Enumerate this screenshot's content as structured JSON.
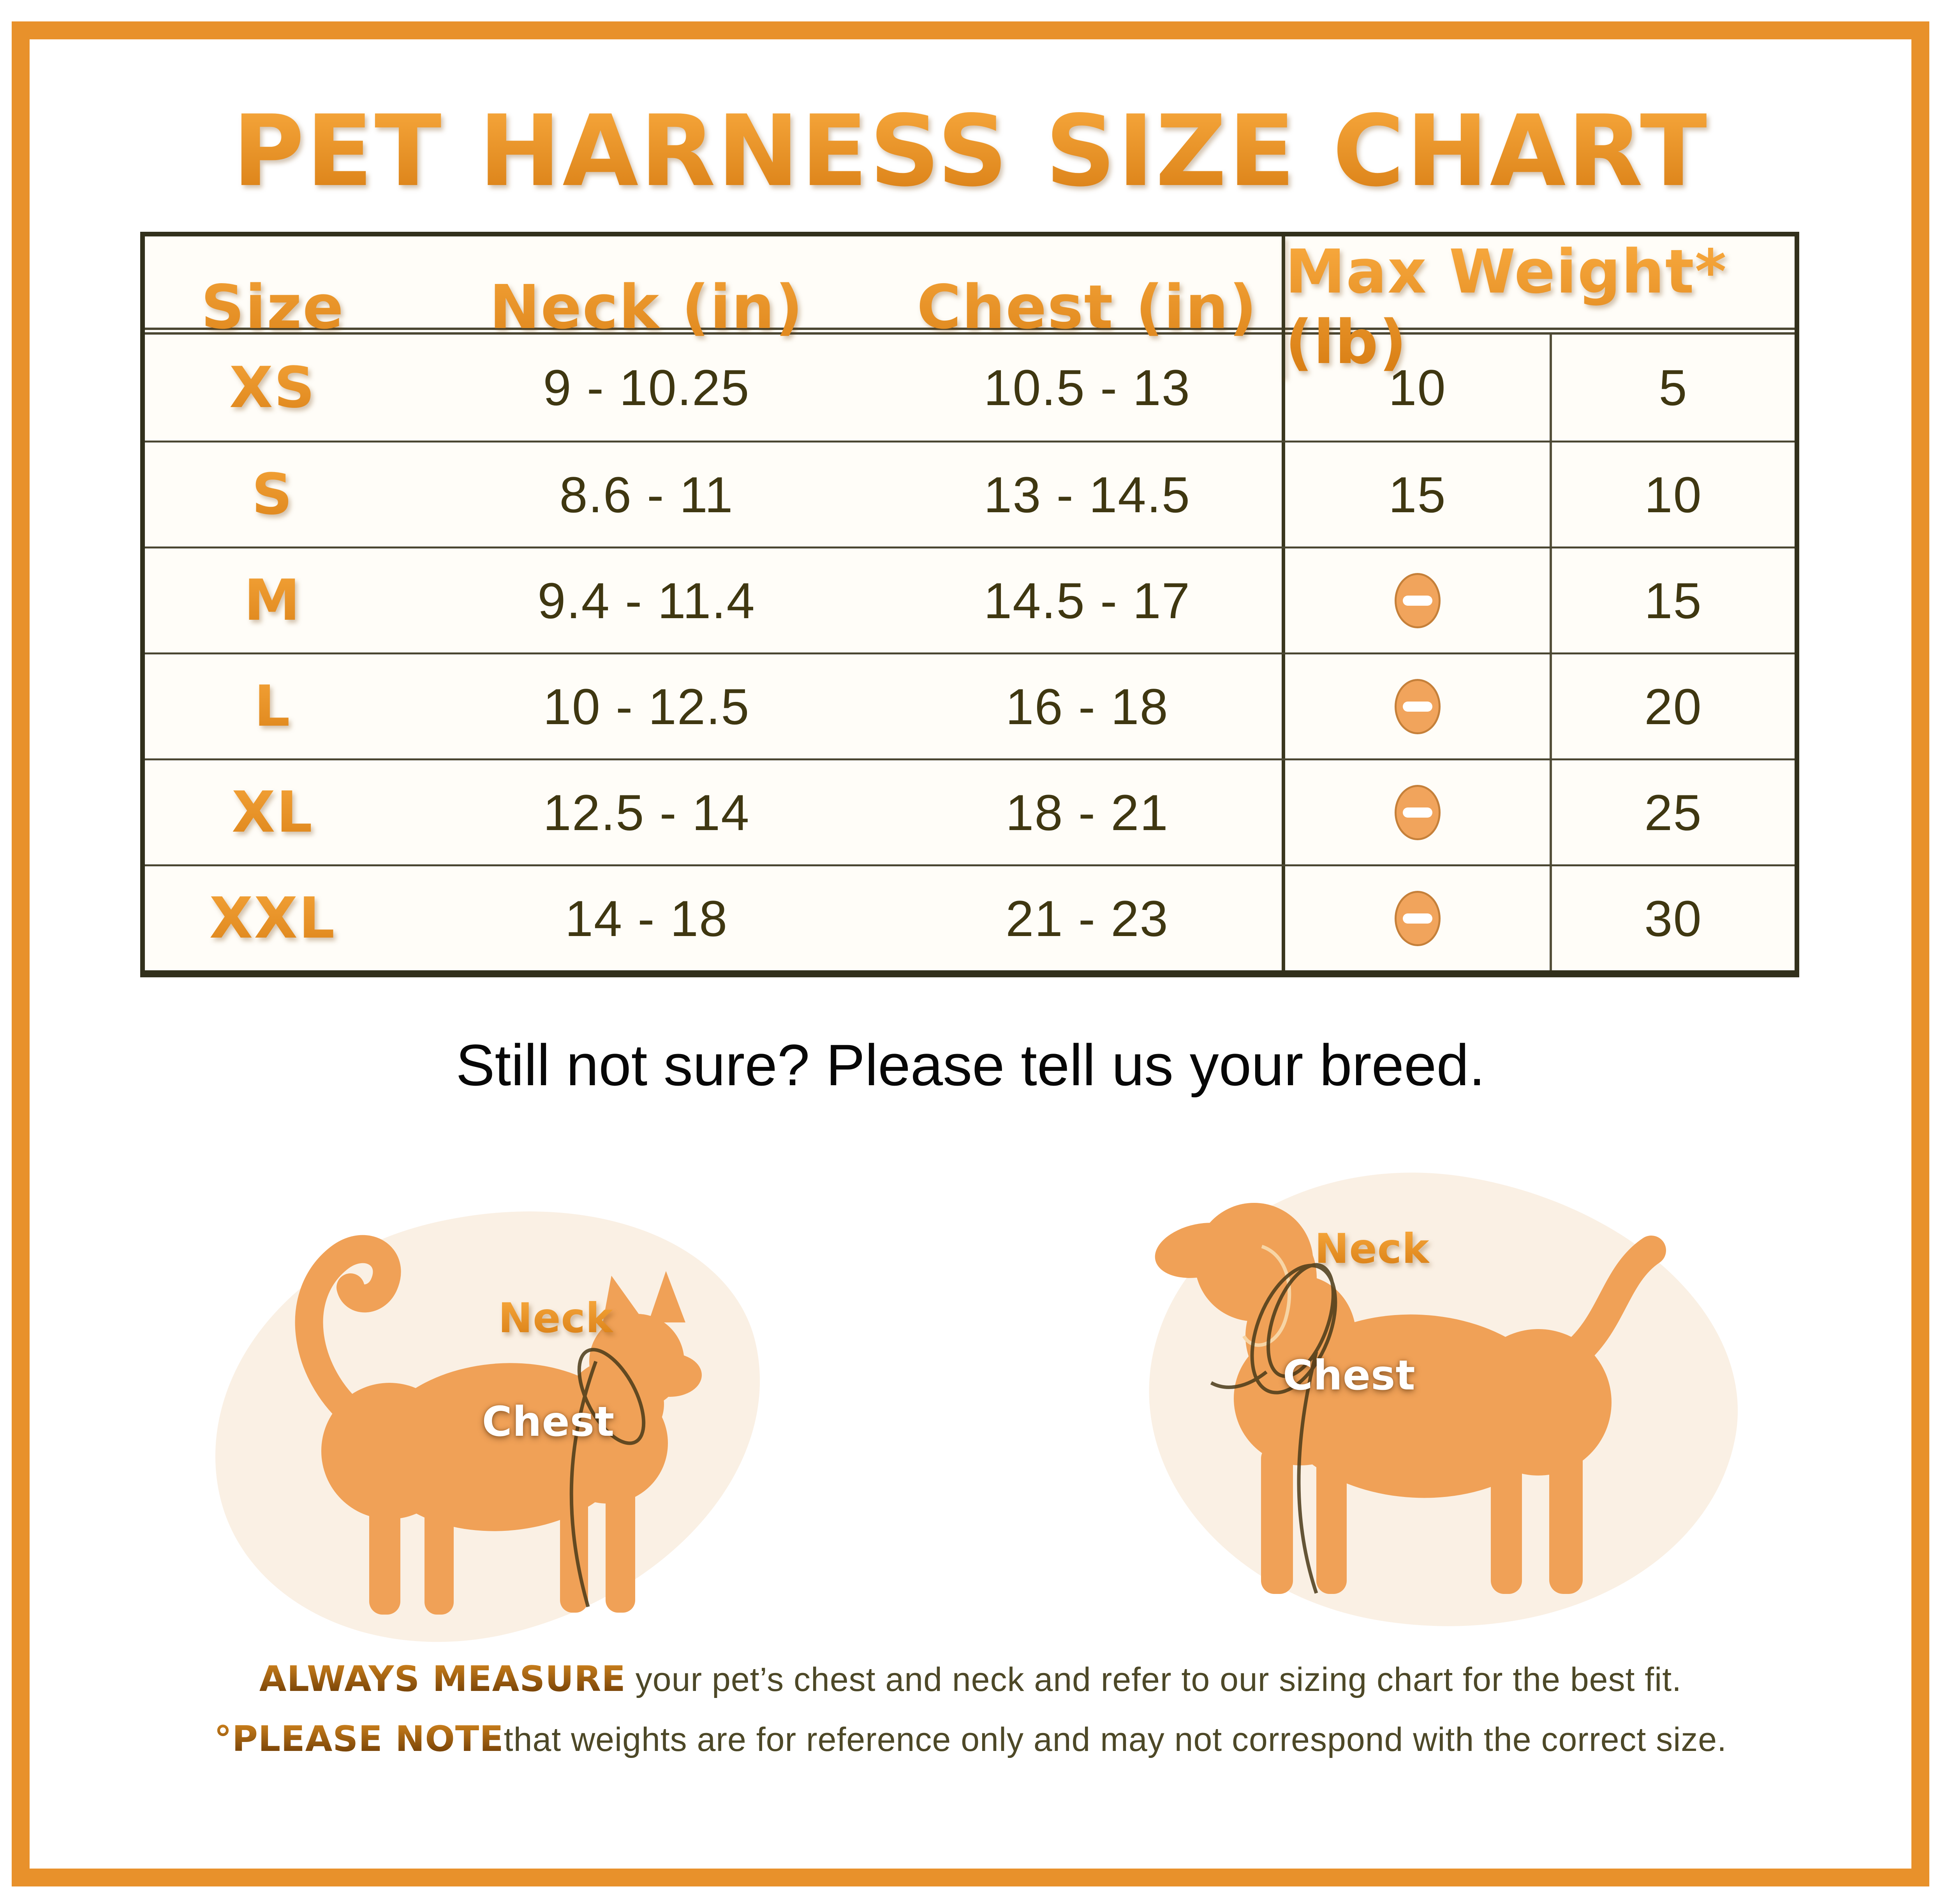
{
  "title": "PET HARNESS SIZE CHART",
  "table": {
    "headers": {
      "size": "Size",
      "neck": "Neck (in)",
      "chest": "Chest (in)",
      "max_weight": "Max Weight* (lb)"
    },
    "rows": [
      {
        "size": "XS",
        "neck": "9 - 10.25",
        "chest": "10.5 - 13",
        "weight_cat": "10",
        "weight_dog": "5"
      },
      {
        "size": "S",
        "neck": "8.6 - 11",
        "chest": "13 - 14.5",
        "weight_cat": "15",
        "weight_dog": "10"
      },
      {
        "size": "M",
        "neck": "9.4 - 11.4",
        "chest": "14.5 - 17",
        "weight_cat": null,
        "weight_dog": "15"
      },
      {
        "size": "L",
        "neck": "10 - 12.5",
        "chest": "16 - 18",
        "weight_cat": null,
        "weight_dog": "20"
      },
      {
        "size": "XL",
        "neck": "12.5 - 14",
        "chest": "18 - 21",
        "weight_cat": null,
        "weight_dog": "25"
      },
      {
        "size": "XXL",
        "neck": "14 - 18",
        "chest": "21 - 23",
        "weight_cat": null,
        "weight_dog": "30"
      }
    ]
  },
  "subtitle": "Still not sure? Please tell us your breed.",
  "figures": {
    "cat": {
      "neck_label": "Neck",
      "chest_label": "Chest"
    },
    "dog": {
      "neck_label": "Neck",
      "chest_label": "Chest"
    }
  },
  "footnotes": {
    "line1_strong": "ALWAYS MEASURE",
    "line1_rest": " your pet’s chest and neck and refer to our sizing chart for the best fit.",
    "line2_strong": "°PLEASE NOTE",
    "line2_rest": "that weights are for reference only and may not correspond with the correct size."
  },
  "icons": {
    "no_weight": "minus-in-circle"
  },
  "colors": {
    "frame_orange": "#E8912B",
    "title_orange": "#F0922B",
    "table_line": "#4B4733",
    "table_border": "#32301C",
    "data_text": "#3F3711",
    "silhouette_orange": "#F0A157",
    "blob_cream": "#FAF0E4",
    "minus_fill": "#F1A45C",
    "footnote_text": "#4D4827"
  }
}
